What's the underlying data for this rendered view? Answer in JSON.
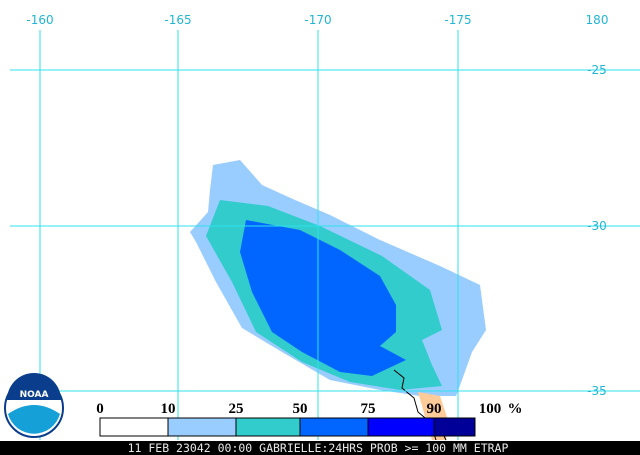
{
  "map": {
    "lon_labels": [
      "-160",
      "-165",
      "-170",
      "-175",
      "180"
    ],
    "lat_labels": [
      "-25",
      "-30",
      "-35"
    ],
    "legend": {
      "labels": [
        "0",
        "10",
        "25",
        "50",
        "75",
        "90",
        "100"
      ],
      "unit": "%"
    },
    "logo": "NOAA",
    "footer": "11 FEB 23042 00:00 GABRIELLE:24HRS PROB >= 100 MM ETRAP"
  }
}
